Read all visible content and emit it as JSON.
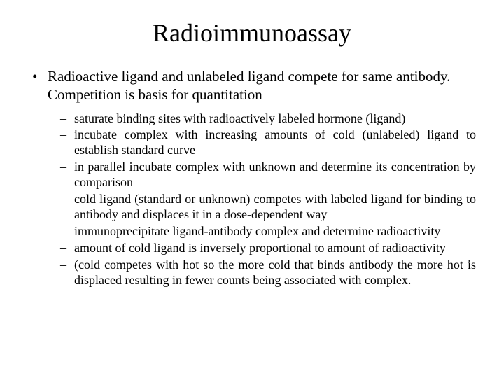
{
  "title": "Radioimmunoassay",
  "colors": {
    "background": "#ffffff",
    "text": "#000000"
  },
  "font_family": "Times New Roman",
  "title_fontsize": 36,
  "level1_fontsize": 21,
  "level2_fontsize": 18,
  "level1": [
    {
      "marker": "•",
      "text": "Radioactive ligand and unlabeled ligand compete for same antibody. Competition is basis for quantitation"
    }
  ],
  "level2": [
    {
      "marker": "–",
      "text": "saturate binding sites with radioactively labeled hormone (ligand)"
    },
    {
      "marker": "–",
      "text": "incubate complex with increasing amounts of cold (unlabeled) ligand to establish standard curve"
    },
    {
      "marker": "–",
      "text": "in parallel incubate complex with unknown and determine its concentration by comparison"
    },
    {
      "marker": "–",
      "text": "cold ligand (standard or unknown) competes with labeled ligand for binding to antibody and displaces it in a dose-dependent way"
    },
    {
      "marker": "–",
      "text": "immunoprecipitate ligand-antibody complex and determine radioactivity"
    },
    {
      "marker": "–",
      "text": "amount of cold ligand is inversely proportional to amount of radioactivity"
    },
    {
      "marker": "–",
      "text": "(cold competes with hot so the more cold that binds antibody the more hot is displaced resulting in fewer counts being associated with complex."
    }
  ]
}
